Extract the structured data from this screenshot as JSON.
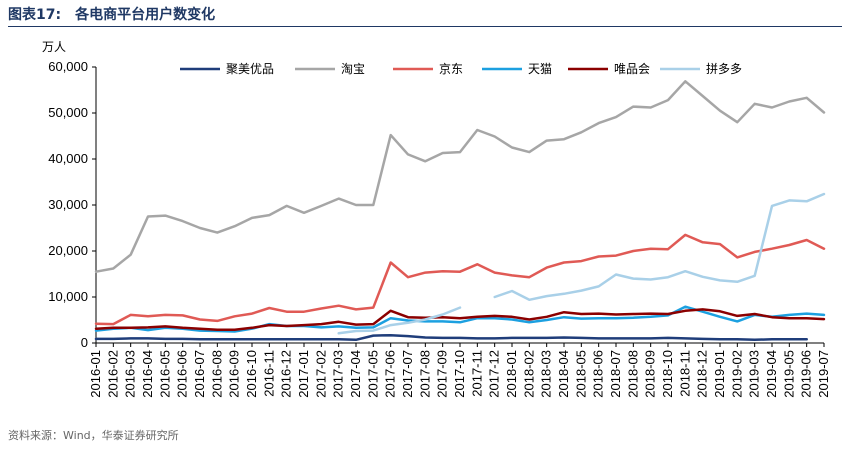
{
  "figure": {
    "label": "图表17:",
    "title": "各电商平台用户数变化",
    "unit": "万人",
    "source": "资料来源：Wind，华泰证券研究所"
  },
  "chart_data": {
    "type": "line",
    "title": "各电商平台用户数变化",
    "ylabel": "万人",
    "ylim": [
      0,
      60000
    ],
    "yticks": [
      0,
      10000,
      20000,
      30000,
      40000,
      50000,
      60000
    ],
    "ytick_labels": [
      "0",
      "10,000",
      "20,000",
      "30,000",
      "40,000",
      "50,000",
      "60,000"
    ],
    "grid": false,
    "legend_position": "top",
    "x": [
      "2016-01",
      "2016-02",
      "2016-03",
      "2016-04",
      "2016-05",
      "2016-06",
      "2016-07",
      "2016-08",
      "2016-09",
      "2016-10",
      "2016-11",
      "2016-12",
      "2017-01",
      "2017-02",
      "2017-03",
      "2017-04",
      "2017-05",
      "2017-06",
      "2017-07",
      "2017-08",
      "2017-09",
      "2017-10",
      "2017-11",
      "2017-12",
      "2018-01",
      "2018-02",
      "2018-03",
      "2018-04",
      "2018-05",
      "2018-06",
      "2018-07",
      "2018-08",
      "2018-09",
      "2018-10",
      "2018-11",
      "2018-12",
      "2019-01",
      "2019-02",
      "2019-03",
      "2019-04",
      "2019-05",
      "2019-06",
      "2019-07"
    ],
    "series": [
      {
        "name": "聚美优品",
        "color": "#1f3d7a",
        "width": 2.5,
        "values": [
          900,
          900,
          1000,
          1000,
          900,
          900,
          800,
          800,
          800,
          800,
          800,
          800,
          800,
          800,
          800,
          700,
          1600,
          1700,
          1500,
          1200,
          1100,
          1100,
          1000,
          1000,
          1100,
          1100,
          1100,
          1200,
          1100,
          1000,
          1000,
          1000,
          1000,
          1100,
          1000,
          900,
          800,
          800,
          700,
          800,
          800,
          800,
          null
        ]
      },
      {
        "name": "淘宝",
        "color": "#a6a6a6",
        "width": 2.5,
        "values": [
          15500,
          16200,
          19200,
          27500,
          27700,
          26500,
          25000,
          24000,
          25400,
          27200,
          27800,
          29800,
          28300,
          29800,
          31400,
          30000,
          30000,
          45200,
          41000,
          39500,
          41300,
          41500,
          46300,
          44900,
          42500,
          41500,
          44000,
          44300,
          45800,
          47800,
          49100,
          51400,
          51200,
          52800,
          56900,
          53700,
          50500,
          48000,
          52000,
          51200,
          52500,
          53300,
          50100
        ]
      },
      {
        "name": "京东",
        "color": "#e05a55",
        "width": 2.5,
        "values": [
          4200,
          4100,
          6100,
          5800,
          6100,
          6000,
          5100,
          4800,
          5800,
          6400,
          7600,
          6800,
          6800,
          7500,
          8100,
          7300,
          7700,
          17500,
          14300,
          15300,
          15600,
          15500,
          17100,
          15300,
          14700,
          14300,
          16400,
          17500,
          17800,
          18800,
          19000,
          20000,
          20500,
          20400,
          23500,
          21900,
          21500,
          18600,
          19800,
          20500,
          21300,
          22400,
          20500
        ]
      },
      {
        "name": "天猫",
        "color": "#1ca0e0",
        "width": 2.5,
        "values": [
          2700,
          3100,
          3300,
          2800,
          3300,
          3100,
          2700,
          2600,
          2500,
          3100,
          4100,
          3700,
          3700,
          3400,
          3600,
          3300,
          3400,
          5400,
          4900,
          4700,
          4700,
          4500,
          5400,
          5400,
          5100,
          4500,
          5000,
          5600,
          5300,
          5400,
          5400,
          5500,
          5700,
          6000,
          7900,
          6800,
          5700,
          4700,
          6100,
          5700,
          6100,
          6400,
          6100
        ]
      },
      {
        "name": "唯品会",
        "color": "#8b0000",
        "width": 2.5,
        "values": [
          3100,
          3300,
          3300,
          3400,
          3600,
          3300,
          3100,
          2900,
          2900,
          3300,
          3900,
          3700,
          3900,
          4100,
          4600,
          4000,
          4100,
          7000,
          5600,
          5500,
          5600,
          5400,
          5700,
          5900,
          5700,
          5100,
          5700,
          6700,
          6300,
          6400,
          6200,
          6300,
          6400,
          6300,
          7000,
          7300,
          6900,
          5900,
          6300,
          5600,
          5400,
          5400,
          5200
        ]
      },
      {
        "name": "拼多多",
        "color": "#a9d0e8",
        "width": 2.5,
        "values": [
          null,
          null,
          null,
          null,
          null,
          null,
          null,
          null,
          null,
          null,
          null,
          null,
          null,
          null,
          2100,
          2600,
          2700,
          3900,
          4400,
          5100,
          6200,
          7700,
          null,
          10000,
          11300,
          9400,
          10200,
          10700,
          11400,
          12300,
          14900,
          14000,
          13800,
          14300,
          15600,
          14400,
          13600,
          13300,
          14600,
          29800,
          31000,
          30800,
          32400
        ]
      }
    ]
  }
}
